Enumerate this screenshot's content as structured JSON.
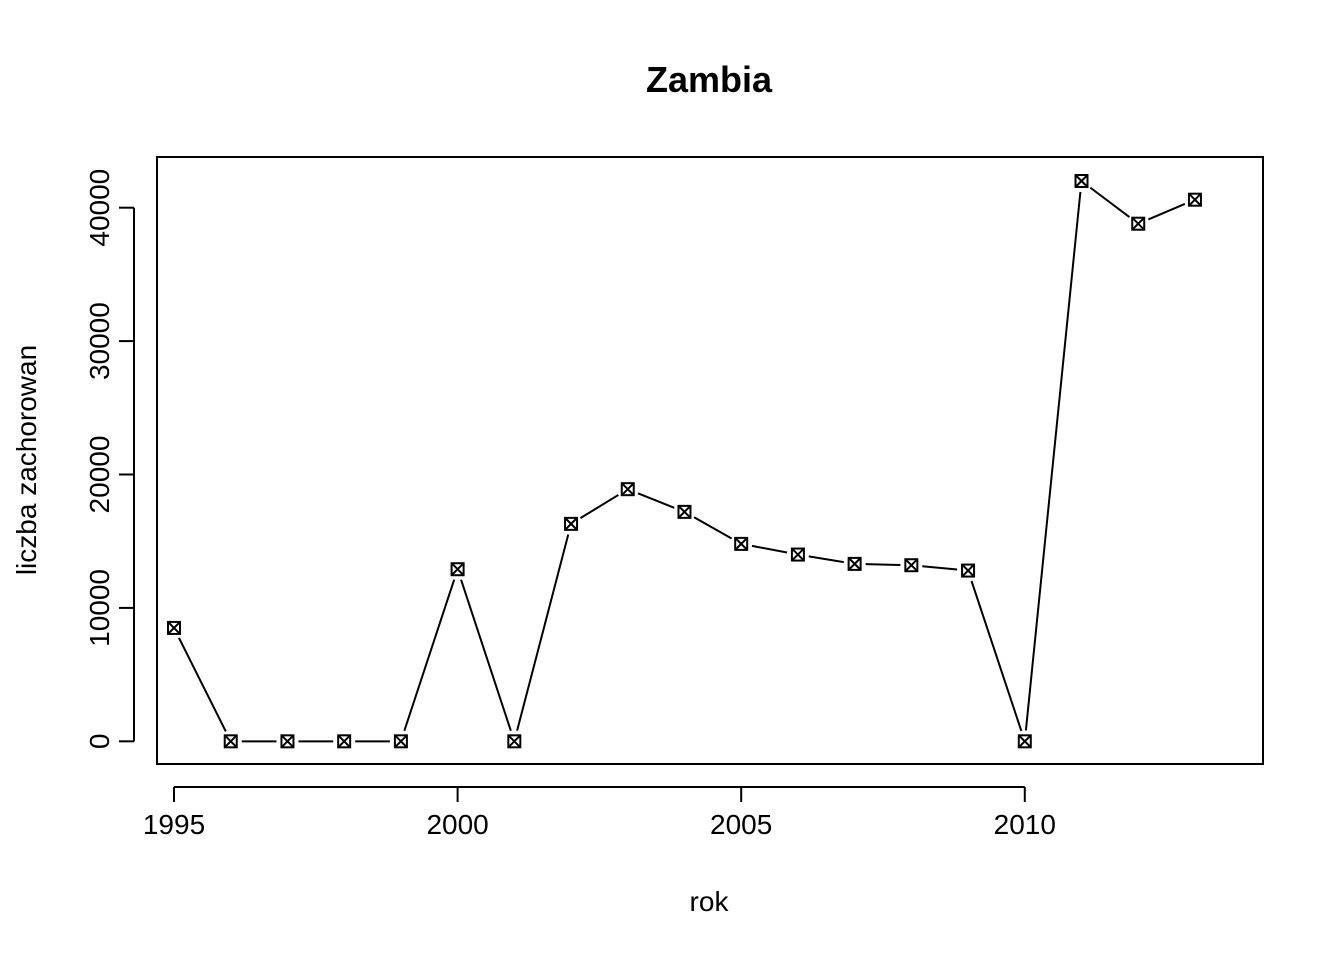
{
  "chart_data": {
    "type": "line",
    "title": "Zambia",
    "xlabel": "rok",
    "ylabel": "liczba zachorowan",
    "xlim": [
      1994.7,
      2014.2
    ],
    "ylim": [
      -1700,
      43800
    ],
    "x_ticks": [
      1995,
      2000,
      2005,
      2010
    ],
    "y_ticks": [
      0,
      10000,
      20000,
      30000,
      40000
    ],
    "grid": false,
    "legend": "none",
    "marker": "boxed-x",
    "series": [
      {
        "x": [
          1995,
          1996,
          1997,
          1998,
          1999,
          2000,
          2001,
          2002,
          2003,
          2004,
          2005,
          2006,
          2007,
          2008,
          2009,
          2010,
          2011,
          2012,
          2013
        ],
        "values": [
          8500,
          0,
          0,
          0,
          0,
          12900,
          0,
          16300,
          18900,
          17200,
          14800,
          14000,
          13300,
          13200,
          12800,
          0,
          42000,
          38800,
          40600
        ]
      }
    ],
    "colors": {
      "line": "#000000",
      "background": "#ffffff"
    }
  }
}
